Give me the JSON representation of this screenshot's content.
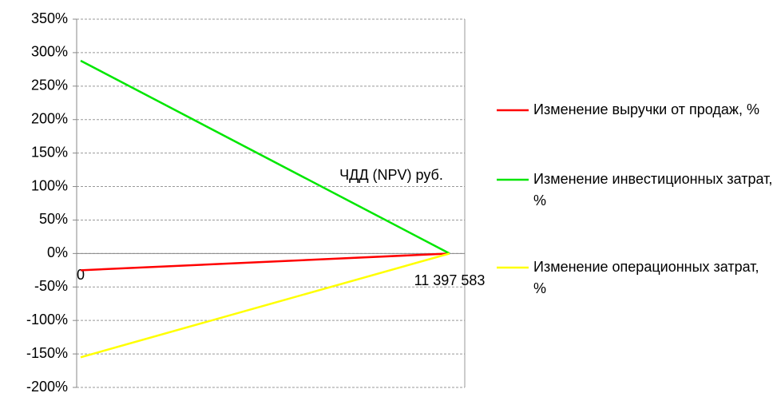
{
  "chart_data": {
    "type": "line",
    "x_label": "ЧДД (NPV) руб.",
    "categories": [
      "0",
      "11 397 583"
    ],
    "series": [
      {
        "name": "Изменение выручки от продаж, %",
        "color": "#ff0000",
        "values": [
          -25,
          0
        ]
      },
      {
        "name": "Изменение инвестиционных затрат, %",
        "color": "#00e600",
        "values": [
          288,
          0
        ]
      },
      {
        "name": "Изменение операционных затрат, %",
        "color": "#ffff00",
        "values": [
          -155,
          0
        ]
      }
    ],
    "ylim": [
      -200,
      350
    ],
    "yticks": [
      {
        "value": -200,
        "label": "-200%"
      },
      {
        "value": -150,
        "label": "-150%"
      },
      {
        "value": -100,
        "label": "-100%"
      },
      {
        "value": -50,
        "label": "-50%"
      },
      {
        "value": 0,
        "label": "0%"
      },
      {
        "value": 50,
        "label": "50%"
      },
      {
        "value": 100,
        "label": "100%"
      },
      {
        "value": 150,
        "label": "150%"
      },
      {
        "value": 200,
        "label": "200%"
      },
      {
        "value": 250,
        "label": "250%"
      },
      {
        "value": 300,
        "label": "300%"
      },
      {
        "value": 350,
        "label": "350%"
      }
    ],
    "grid": true,
    "legend": "right"
  }
}
